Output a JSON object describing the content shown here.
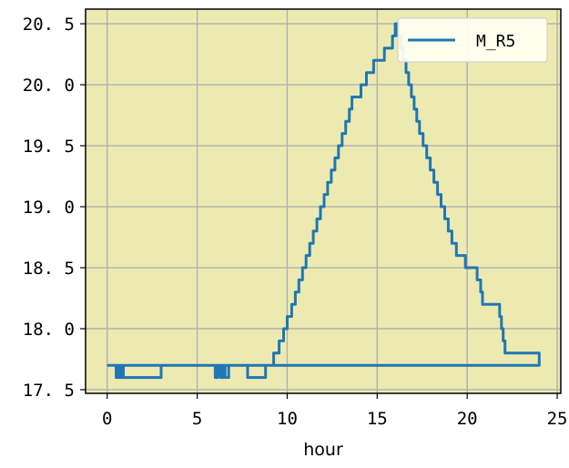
{
  "chart_data": {
    "type": "line",
    "xlabel": "hour",
    "ylabel": "",
    "xlim": [
      -1.2,
      25.2
    ],
    "ylim": [
      17.47,
      20.62
    ],
    "xticks": [
      0,
      5,
      10,
      15,
      20,
      25
    ],
    "xtick_labels": [
      "0",
      "5",
      "10",
      "15",
      "20",
      "25"
    ],
    "yticks": [
      17.5,
      18.0,
      18.5,
      19.0,
      19.5,
      20.0,
      20.5
    ],
    "ytick_labels": [
      "17. 5",
      "18. 0",
      "18. 5",
      "19. 0",
      "19. 5",
      "20. 0",
      "20. 5"
    ],
    "grid": true,
    "legend_position": "top-right",
    "background_color": "#eceab1",
    "series": [
      {
        "name": "M_R5",
        "color": "#1f77b4",
        "step": true,
        "x": [
          0.0,
          0.5,
          0.55,
          0.6,
          0.65,
          0.75,
          0.85,
          0.9,
          3.0,
          6.0,
          6.15,
          6.3,
          6.45,
          6.55,
          6.75,
          7.8,
          8.8,
          9.25,
          9.55,
          9.8,
          10.0,
          10.25,
          10.45,
          10.65,
          10.85,
          11.05,
          11.25,
          11.45,
          11.65,
          11.85,
          12.05,
          12.25,
          12.45,
          12.65,
          12.85,
          13.05,
          13.25,
          13.45,
          13.6,
          14.1,
          14.4,
          14.8,
          15.4,
          15.85,
          16.0,
          16.15,
          16.3,
          16.45,
          16.6,
          16.75,
          16.9,
          17.05,
          17.2,
          17.35,
          17.55,
          17.75,
          17.95,
          18.15,
          18.35,
          18.55,
          18.75,
          18.95,
          19.15,
          19.4,
          19.9,
          20.55,
          20.75,
          20.85,
          21.8,
          21.9,
          22.0,
          22.1,
          24.0
        ],
        "y": [
          17.7,
          17.6,
          17.7,
          17.6,
          17.7,
          17.6,
          17.7,
          17.6,
          17.7,
          17.6,
          17.7,
          17.6,
          17.7,
          17.6,
          17.7,
          17.6,
          17.7,
          17.8,
          17.9,
          18.0,
          18.1,
          18.2,
          18.3,
          18.4,
          18.5,
          18.6,
          18.7,
          18.8,
          18.9,
          19.0,
          19.1,
          19.2,
          19.3,
          19.4,
          19.5,
          19.6,
          19.7,
          19.8,
          19.9,
          20.0,
          20.1,
          20.2,
          20.3,
          20.4,
          20.5,
          20.4,
          20.3,
          20.2,
          20.1,
          20.0,
          19.9,
          19.8,
          19.7,
          19.6,
          19.5,
          19.4,
          19.3,
          19.2,
          19.1,
          19.0,
          18.9,
          18.8,
          18.7,
          18.6,
          18.5,
          18.4,
          18.3,
          18.2,
          18.1,
          18.0,
          17.9,
          17.8,
          17.7
        ]
      }
    ]
  }
}
